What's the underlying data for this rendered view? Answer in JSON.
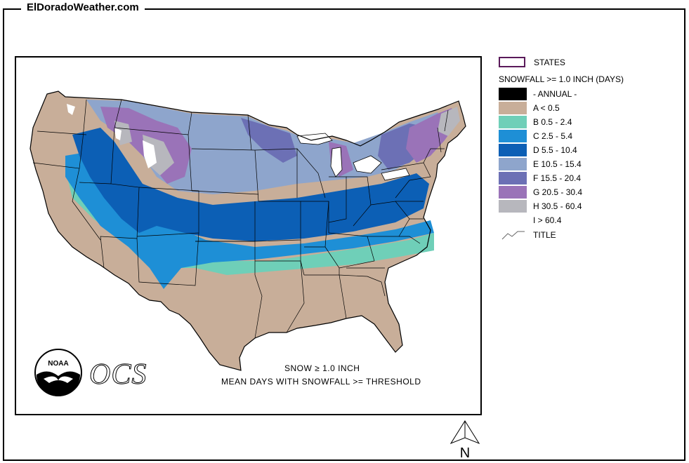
{
  "site": {
    "title": "ElDoradoWeather.com"
  },
  "map": {
    "note_line1": "SNOW ≥ 1.0 INCH",
    "note_line2": "MEAN DAYS WITH SNOWFALL >= THRESHOLD",
    "agency_text": "OCS",
    "noaa_text": "NOAA",
    "north_label": "N",
    "colors": {
      "background": "#c8ae99",
      "B": "#6fcfb8",
      "C": "#1e8fd6",
      "D": "#0c5fb5",
      "E": "#8ea5cc",
      "F": "#6c70b5",
      "G": "#9a73b8",
      "H": "#b7b7bd",
      "I": "#ffffff",
      "state_lines": "#000000"
    }
  },
  "legend": {
    "states_label": "STATES",
    "heading": "SNOWFALL >= 1.0 INCH (DAYS)",
    "items": [
      {
        "label": "- ANNUAL -",
        "color": "#000000"
      },
      {
        "label": "A < 0.5",
        "color": "#c8ae99"
      },
      {
        "label": "B 0.5 - 2.4",
        "color": "#6fcfb8"
      },
      {
        "label": "C 2.5 - 5.4",
        "color": "#1e8fd6"
      },
      {
        "label": "D 5.5 - 10.4",
        "color": "#0c5fb5"
      },
      {
        "label": "E 10.5 - 15.4",
        "color": "#8ea5cc"
      },
      {
        "label": "F 15.5 - 20.4",
        "color": "#6c70b5"
      },
      {
        "label": "G 20.5 - 30.4",
        "color": "#9a73b8"
      },
      {
        "label": "H 30.5 - 60.4",
        "color": "#b7b7bd"
      },
      {
        "label": "I > 60.4",
        "color": "#ffffff"
      }
    ],
    "title_label": "TITLE"
  }
}
